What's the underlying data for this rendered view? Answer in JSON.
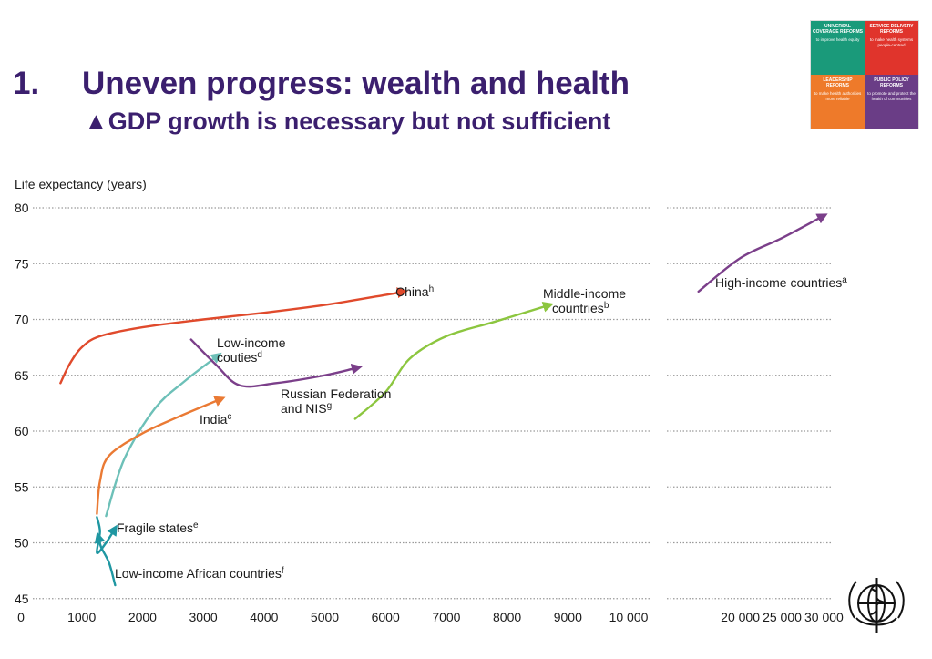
{
  "header": {
    "number": "1.",
    "title": "Uneven progress: wealth and health",
    "subtitle": "▲GDP growth is necessary but not sufficient"
  },
  "badge": {
    "cells": [
      {
        "heading": "UNIVERSAL COVERAGE REFORMS",
        "text": "to improve health equity",
        "color": "#1a9a7a"
      },
      {
        "heading": "SERVICE DELIVERY REFORMS",
        "text": "to make health systems people-centred",
        "color": "#e0342c"
      },
      {
        "heading": "LEADERSHIP REFORMS",
        "text": "to make health authorities more reliable",
        "color": "#ee7a2a"
      },
      {
        "heading": "PUBLIC POLICY REFORMS",
        "text": "to promote and protect the health of communities",
        "color": "#6a3d86"
      }
    ]
  },
  "chart_data": {
    "type": "line",
    "ylabel": "Life expectancy (years)",
    "ylim": [
      45,
      80
    ],
    "yticks": [
      "80",
      "75",
      "70",
      "65",
      "60",
      "55",
      "50",
      "45"
    ],
    "x_scale": "broken axis: linear 0–10 000, then linear 15 000–30 000",
    "xticks_left": [
      "0",
      "1000",
      "2000",
      "3000",
      "4000",
      "5000",
      "6000",
      "7000",
      "8000",
      "9000",
      "10 000"
    ],
    "xticks_right": [
      "20 000",
      "25 000",
      "30 000"
    ],
    "grid": "horizontal dotted",
    "series": [
      {
        "name": "China",
        "sup": "h",
        "color": "#e04a2c",
        "points": [
          [
            650,
            64.3
          ],
          [
            800,
            66
          ],
          [
            1000,
            67.5
          ],
          [
            1300,
            68.5
          ],
          [
            2000,
            69.3
          ],
          [
            3000,
            70
          ],
          [
            4000,
            70.6
          ],
          [
            5000,
            71.3
          ],
          [
            6000,
            72.2
          ],
          [
            6300,
            72.5
          ]
        ]
      },
      {
        "name": "Low-income countries",
        "sup": "d",
        "color": "#6dc0b8",
        "points": [
          [
            1400,
            52.4
          ],
          [
            1700,
            57.5
          ],
          [
            2200,
            62
          ],
          [
            2700,
            64.5
          ],
          [
            3250,
            66.8
          ]
        ]
      },
      {
        "name": "Russian Federation and NIS",
        "sup": "g",
        "color": "#7b3f8a",
        "points": [
          [
            2800,
            68.2
          ],
          [
            3200,
            66
          ],
          [
            3600,
            64.1
          ],
          [
            4200,
            64.3
          ],
          [
            5000,
            65
          ],
          [
            5550,
            65.7
          ]
        ]
      },
      {
        "name": "India",
        "sup": "c",
        "color": "#ea7a34",
        "points": [
          [
            1250,
            52.6
          ],
          [
            1300,
            55.5
          ],
          [
            1450,
            57.8
          ],
          [
            2000,
            59.8
          ],
          [
            2600,
            61.3
          ],
          [
            3300,
            62.9
          ]
        ]
      },
      {
        "name": "Middle-income countries",
        "sup": "b",
        "color": "#8cc63f",
        "points": [
          [
            5500,
            61.1
          ],
          [
            6000,
            63.5
          ],
          [
            6400,
            66.5
          ],
          [
            7000,
            68.5
          ],
          [
            7800,
            69.8
          ],
          [
            8700,
            71.3
          ]
        ]
      },
      {
        "name": "High-income countries",
        "sup": "a",
        "color": "#7b3f8a",
        "points": [
          [
            15000,
            72.5
          ],
          [
            20000,
            75.5
          ],
          [
            25000,
            77.3
          ],
          [
            30000,
            79.3
          ]
        ]
      },
      {
        "name": "Fragile states",
        "sup": "e",
        "color": "#1f97a2",
        "points": [
          [
            1250,
            52.3
          ],
          [
            1300,
            51
          ],
          [
            1250,
            49.1
          ],
          [
            1400,
            50
          ],
          [
            1550,
            51.3
          ]
        ]
      },
      {
        "name": "Low-income African countries",
        "sup": "f",
        "color": "#1f97a2",
        "points": [
          [
            1550,
            46.2
          ],
          [
            1450,
            48.2
          ],
          [
            1320,
            49.6
          ],
          [
            1270,
            50.6
          ]
        ]
      }
    ]
  }
}
